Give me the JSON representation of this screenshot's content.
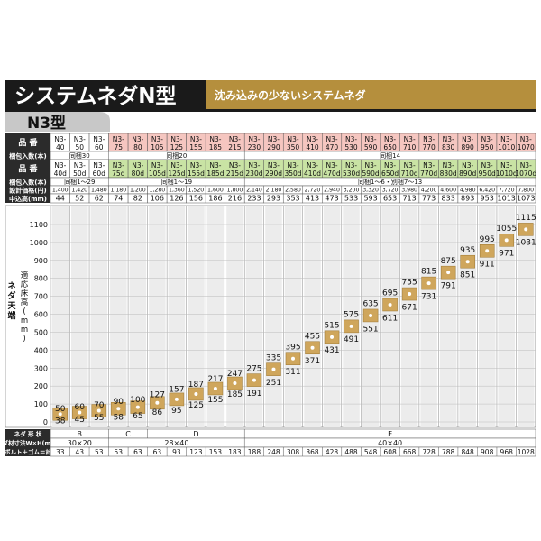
{
  "header": {
    "title": "システムネダN型",
    "subtitle": "沈み込みの少ないシステムネダ",
    "model": "N3型"
  },
  "labels": {
    "row_hinban": "品 番",
    "row_konpo": "梱包入数(本)",
    "row_kakaku": "設計価格(円)",
    "row_nakamaku": "中込高(mm)",
    "side_a": "ネダ天端",
    "side_b": "適応床高(mm)",
    "footer_shape": "ネダ 形 状",
    "footer_size": "ネダ材寸法W×H(mm)",
    "footer_bolt": "ボルト＋ゴム＝計"
  },
  "colors": {
    "title_bg": "#1a1a1a",
    "subtitle_bg": "#b58f3d",
    "pink_row": "#f5c6c0",
    "green_row": "#c9e3a4",
    "marker": "#cfa65c"
  },
  "columns": [
    {
      "code": "N3-40",
      "code_d": "N3-40d",
      "price": "1,400",
      "nk": "44",
      "max": "50",
      "min": "38",
      "bolt": "33"
    },
    {
      "code": "N3-50",
      "code_d": "N3-50d",
      "price": "1,420",
      "nk": "52",
      "max": "60",
      "min": "45",
      "bolt": "43"
    },
    {
      "code": "N3-60",
      "code_d": "N3-60d",
      "price": "1,480",
      "nk": "62",
      "max": "70",
      "min": "55",
      "bolt": "53"
    },
    {
      "code": "N3-75",
      "code_d": "N3-75d",
      "price": "1,180",
      "nk": "74",
      "max": "90",
      "min": "58",
      "bolt": "53"
    },
    {
      "code": "N3-80",
      "code_d": "N3-80d",
      "price": "1,200",
      "nk": "82",
      "max": "100",
      "min": "65",
      "bolt": "63"
    },
    {
      "code": "N3-105",
      "code_d": "N3-105d",
      "price": "1,280",
      "nk": "106",
      "max": "127",
      "min": "86",
      "bolt": "63"
    },
    {
      "code": "N3-125",
      "code_d": "N3-125d",
      "price": "1,360",
      "nk": "126",
      "max": "157",
      "min": "95",
      "bolt": "93"
    },
    {
      "code": "N3-155",
      "code_d": "N3-155d",
      "price": "1,520",
      "nk": "156",
      "max": "187",
      "min": "125",
      "bolt": "123"
    },
    {
      "code": "N3-185",
      "code_d": "N3-185d",
      "price": "1,600",
      "nk": "186",
      "max": "217",
      "min": "155",
      "bolt": "153"
    },
    {
      "code": "N3-215",
      "code_d": "N3-215d",
      "price": "1,800",
      "nk": "216",
      "max": "247",
      "min": "185",
      "bolt": "183"
    },
    {
      "code": "N3-230",
      "code_d": "N3-230d",
      "price": "2,140",
      "nk": "233",
      "max": "275",
      "min": "191",
      "bolt": "188"
    },
    {
      "code": "N3-290",
      "code_d": "N3-290d",
      "price": "2,180",
      "nk": "293",
      "max": "335",
      "min": "251",
      "bolt": "248"
    },
    {
      "code": "N3-350",
      "code_d": "N3-350d",
      "price": "2,580",
      "nk": "353",
      "max": "395",
      "min": "311",
      "bolt": "308"
    },
    {
      "code": "N3-410",
      "code_d": "N3-410d",
      "price": "2,720",
      "nk": "413",
      "max": "455",
      "min": "371",
      "bolt": "368"
    },
    {
      "code": "N3-470",
      "code_d": "N3-470d",
      "price": "2,940",
      "nk": "473",
      "max": "515",
      "min": "431",
      "bolt": "428"
    },
    {
      "code": "N3-530",
      "code_d": "N3-530d",
      "price": "3,200",
      "nk": "533",
      "max": "575",
      "min": "491",
      "bolt": "488"
    },
    {
      "code": "N3-590",
      "code_d": "N3-590d",
      "price": "3,320",
      "nk": "593",
      "max": "635",
      "min": "551",
      "bolt": "548"
    },
    {
      "code": "N3-650",
      "code_d": "N3-650d",
      "price": "3,720",
      "nk": "653",
      "max": "695",
      "min": "611",
      "bolt": "608"
    },
    {
      "code": "N3-710",
      "code_d": "N3-710d",
      "price": "3,980",
      "nk": "713",
      "max": "755",
      "min": "671",
      "bolt": "668"
    },
    {
      "code": "N3-770",
      "code_d": "N3-770d",
      "price": "4,200",
      "nk": "773",
      "max": "815",
      "min": "731",
      "bolt": "728"
    },
    {
      "code": "N3-830",
      "code_d": "N3-830d",
      "price": "4,600",
      "nk": "833",
      "max": "875",
      "min": "791",
      "bolt": "788"
    },
    {
      "code": "N3-890",
      "code_d": "N3-890d",
      "price": "4,980",
      "nk": "893",
      "max": "935",
      "min": "851",
      "bolt": "848"
    },
    {
      "code": "N3-950",
      "code_d": "N3-950d",
      "price": "6,420",
      "nk": "953",
      "max": "995",
      "min": "911",
      "bolt": "908"
    },
    {
      "code": "N3-1010",
      "code_d": "N3-1010d",
      "price": "7,720",
      "nk": "1013",
      "max": "1055",
      "min": "971",
      "bolt": "968"
    },
    {
      "code": "N3-1070",
      "code_d": "N3-1070d",
      "price": "7,800",
      "nk": "1073",
      "max": "1115",
      "min": "1031",
      "bolt": "1028"
    }
  ],
  "konpo_groups": [
    {
      "from": 0,
      "to": 2,
      "text": "同梱30"
    },
    {
      "from": 3,
      "to": 9,
      "text": "同梱20"
    },
    {
      "from": 10,
      "to": 24,
      "text": "同梱14"
    }
  ],
  "konpo_d_groups": [
    {
      "from": 0,
      "to": 2,
      "text": "同梱1〜29"
    },
    {
      "from": 3,
      "to": 9,
      "text": "同梱1〜19"
    },
    {
      "from": 10,
      "to": 24,
      "text": "同梱1〜6・別梱7〜13"
    }
  ],
  "shapes": [
    {
      "from": 0,
      "to": 2,
      "text": "B"
    },
    {
      "from": 3,
      "to": 4,
      "text": "C"
    },
    {
      "from": 5,
      "to": 9,
      "text": "D"
    },
    {
      "from": 10,
      "to": 24,
      "text": "E"
    }
  ],
  "sizes": [
    {
      "from": 0,
      "to": 2,
      "text": "30×20"
    },
    {
      "from": 3,
      "to": 9,
      "text": "28×40"
    },
    {
      "from": 10,
      "to": 24,
      "text": "40×40"
    }
  ],
  "yticks": [
    "0",
    "100",
    "200",
    "300",
    "400",
    "500",
    "600",
    "700",
    "800",
    "900",
    "1000",
    "1100"
  ]
}
